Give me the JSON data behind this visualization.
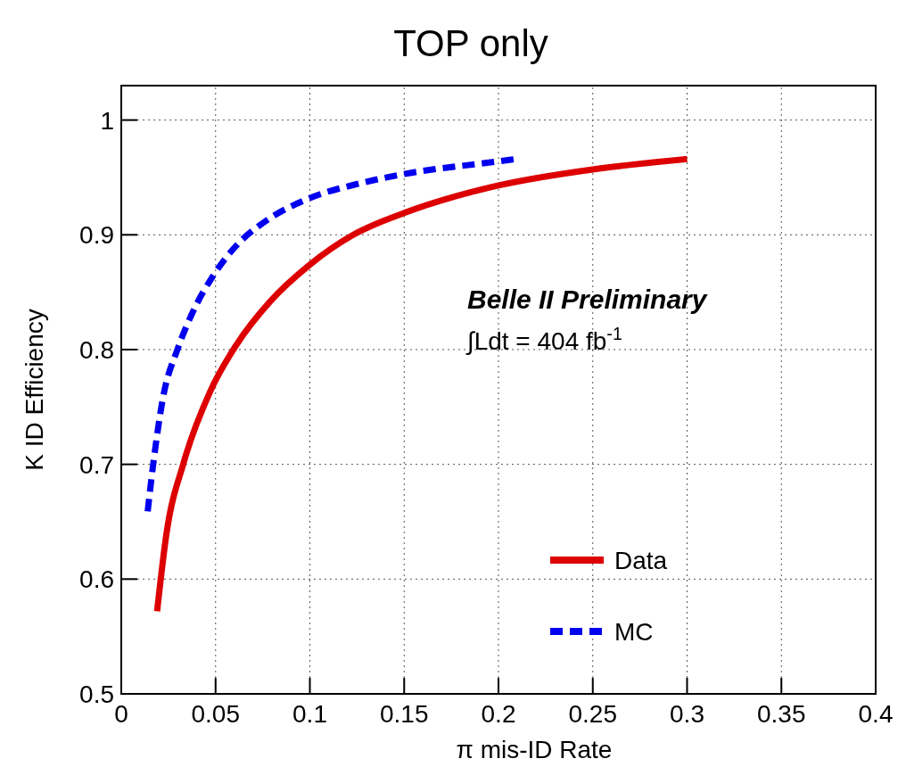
{
  "chart_data": {
    "type": "line",
    "title": "TOP only",
    "xlabel": "π mis-ID Rate",
    "ylabel": "K ID Efficiency",
    "xlim": [
      0,
      0.4
    ],
    "ylim": [
      0.5,
      1.03
    ],
    "xticks": [
      0,
      0.05,
      0.1,
      0.15,
      0.2,
      0.25,
      0.3,
      0.35,
      0.4
    ],
    "yticks": [
      0.5,
      0.6,
      0.7,
      0.8,
      0.9,
      1
    ],
    "grid": true,
    "legend": "bottom right",
    "marker": "none",
    "annotations": [
      "Belle II Preliminary",
      "∫Ldt = 404 fb$^{-1}$"
    ],
    "series": [
      {
        "name": "Data",
        "color": "#dd0000",
        "line_style": "solid",
        "x": [
          0.019,
          0.024,
          0.033,
          0.047,
          0.061,
          0.079,
          0.1,
          0.123,
          0.15,
          0.2,
          0.25,
          0.3
        ],
        "values": [
          0.572,
          0.64,
          0.701,
          0.763,
          0.804,
          0.842,
          0.874,
          0.9,
          0.919,
          0.943,
          0.957,
          0.966
        ]
      },
      {
        "name": "MC",
        "color": "#0000ee",
        "line_style": "dashed",
        "x": [
          0.014,
          0.017,
          0.022,
          0.03,
          0.038,
          0.049,
          0.063,
          0.074,
          0.1,
          0.127,
          0.15,
          0.2,
          0.209
        ],
        "values": [
          0.659,
          0.701,
          0.757,
          0.801,
          0.833,
          0.865,
          0.894,
          0.909,
          0.932,
          0.945,
          0.953,
          0.964,
          0.966
        ]
      }
    ]
  }
}
